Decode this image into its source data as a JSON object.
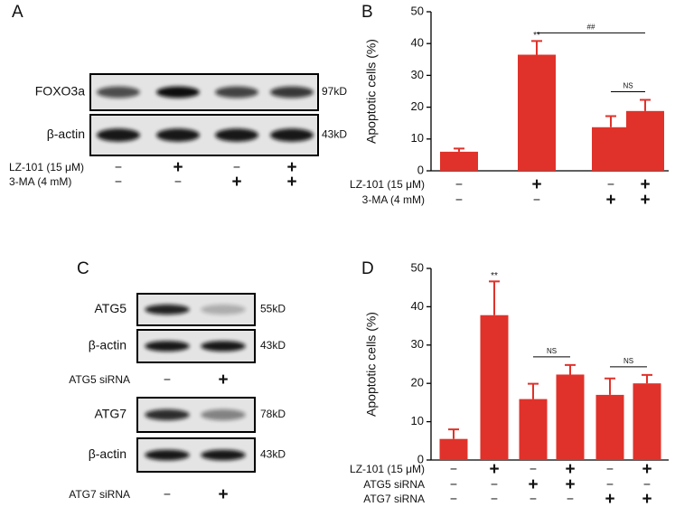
{
  "blots": [
    {
      "panel": "A",
      "sections": [
        {
          "rows": [
            {
              "protein": "FOXO3a",
              "size": "97kD"
            },
            {
              "protein": "β-actin",
              "size": "43kD"
            }
          ],
          "treatments": [
            {
              "label": "LZ-101 (15 μM)",
              "signs": [
                "−",
                "+",
                "−",
                "+"
              ]
            },
            {
              "label": "3-MA (4 mM)",
              "signs": [
                "−",
                "−",
                "+",
                "+"
              ]
            }
          ]
        }
      ]
    },
    {
      "panel": "C",
      "sections": [
        {
          "rows": [
            {
              "protein": "ATG5",
              "size": "55kD"
            },
            {
              "protein": "β-actin",
              "size": "43kD"
            }
          ],
          "treatments": [
            {
              "label": "ATG5 siRNA",
              "signs": [
                "−",
                "+"
              ]
            }
          ]
        },
        {
          "rows": [
            {
              "protein": "ATG7",
              "size": "78kD"
            },
            {
              "protein": "β-actin",
              "size": "43kD"
            }
          ],
          "treatments": [
            {
              "label": "ATG7 siRNA",
              "signs": [
                "−",
                "+"
              ]
            }
          ]
        }
      ]
    }
  ],
  "chart_data": [
    {
      "panel": "B",
      "type": "bar",
      "ylabel": "Apoptotic cells (%)",
      "ylim": [
        0,
        50
      ],
      "yticks": [
        0,
        10,
        20,
        30,
        40,
        50
      ],
      "color": "#e0322a",
      "values": [
        6,
        36.5,
        13.7,
        18.8
      ],
      "errors": [
        1,
        4.3,
        3.5,
        3.5
      ],
      "markers": [
        null,
        "**",
        null,
        null
      ],
      "brackets": [
        {
          "text": "##",
          "bars": [
            1,
            3
          ]
        },
        {
          "text": "NS",
          "bars": [
            2,
            3
          ]
        }
      ],
      "treatments": [
        {
          "label": "LZ-101 (15 μM)",
          "signs": [
            "−",
            "+",
            "−",
            "+"
          ]
        },
        {
          "label": "3-MA (4 mM)",
          "signs": [
            "−",
            "−",
            "+",
            "+"
          ]
        }
      ]
    },
    {
      "panel": "D",
      "type": "bar",
      "ylabel": "Apoptotic cells (%)",
      "ylim": [
        0,
        50
      ],
      "yticks": [
        0,
        10,
        20,
        30,
        40,
        50
      ],
      "color": "#e0322a",
      "values": [
        5.5,
        37.8,
        15.9,
        22.3,
        17,
        20
      ],
      "errors": [
        2.5,
        8.8,
        4,
        2.5,
        4.3,
        2.2
      ],
      "markers": [
        null,
        "**",
        null,
        null,
        null,
        null
      ],
      "brackets": [
        {
          "text": "NS",
          "bars": [
            2,
            3
          ]
        },
        {
          "text": "NS",
          "bars": [
            4,
            5
          ]
        }
      ],
      "treatments": [
        {
          "label": "LZ-101 (15 μM)",
          "signs": [
            "−",
            "+",
            "−",
            "+",
            "−",
            "+"
          ]
        },
        {
          "label": "ATG5 siRNA",
          "signs": [
            "−",
            "−",
            "+",
            "+",
            "−",
            "−"
          ]
        },
        {
          "label": "ATG7 siRNA",
          "signs": [
            "−",
            "−",
            "−",
            "−",
            "+",
            "+"
          ]
        }
      ]
    }
  ]
}
